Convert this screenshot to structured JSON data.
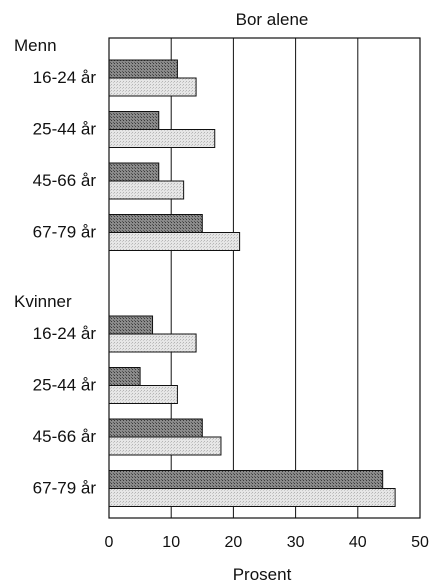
{
  "chart_data": {
    "type": "bar",
    "orientation": "horizontal",
    "title": "Bor alene",
    "xlabel": "Prosent",
    "xlim": [
      0,
      50
    ],
    "xticks": [
      0,
      10,
      20,
      30,
      40,
      50
    ],
    "grid": "vertical",
    "groups": [
      {
        "name": "Menn",
        "categories": [
          "16-24 år",
          "25-44 år",
          "45-66 år",
          "67-79 år"
        ],
        "series": [
          {
            "values": [
              11,
              8,
              8,
              15
            ],
            "color": "#7a7a7a"
          },
          {
            "values": [
              14,
              17,
              12,
              21
            ],
            "color": "#dcdcdc"
          }
        ]
      },
      {
        "name": "Kvinner",
        "categories": [
          "16-24 år",
          "25-44 år",
          "45-66 år",
          "67-79 år"
        ],
        "series": [
          {
            "values": [
              7,
              5,
              15,
              44
            ],
            "color": "#7a7a7a"
          },
          {
            "values": [
              14,
              11,
              18,
              46
            ],
            "color": "#dcdcdc"
          }
        ]
      }
    ]
  }
}
